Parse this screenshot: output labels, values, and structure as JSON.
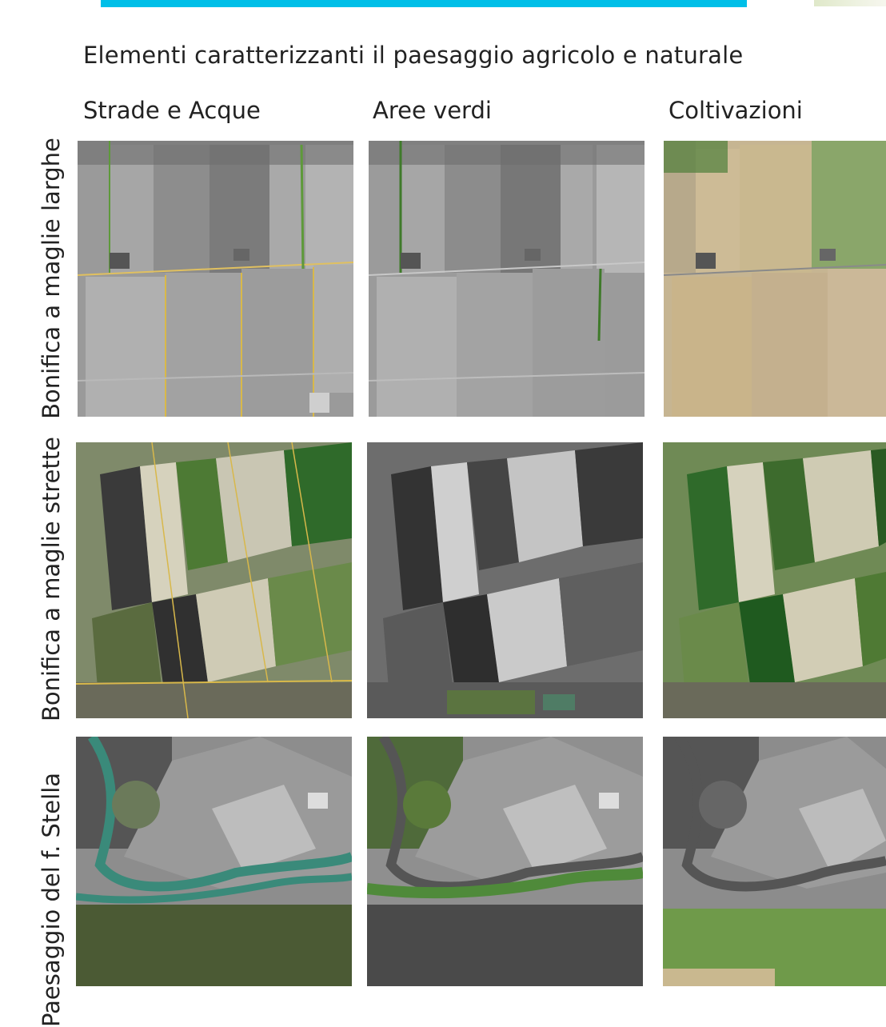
{
  "title": "Elementi caratterizzanti il paesaggio agricolo e naturale",
  "columns": [
    "Strade e Acque",
    "Aree verdi",
    "Coltivazioni"
  ],
  "rows": [
    "Bonifica a maglie larghe",
    "Bonifica a maglie strette",
    "Paesaggio del f. Stella"
  ],
  "palette": {
    "accent_bar": "#00bfe8",
    "road_highlight": "#d8b84a",
    "water_highlight": "#3a8a7a",
    "vegetation_green": "#3f7a2a"
  }
}
